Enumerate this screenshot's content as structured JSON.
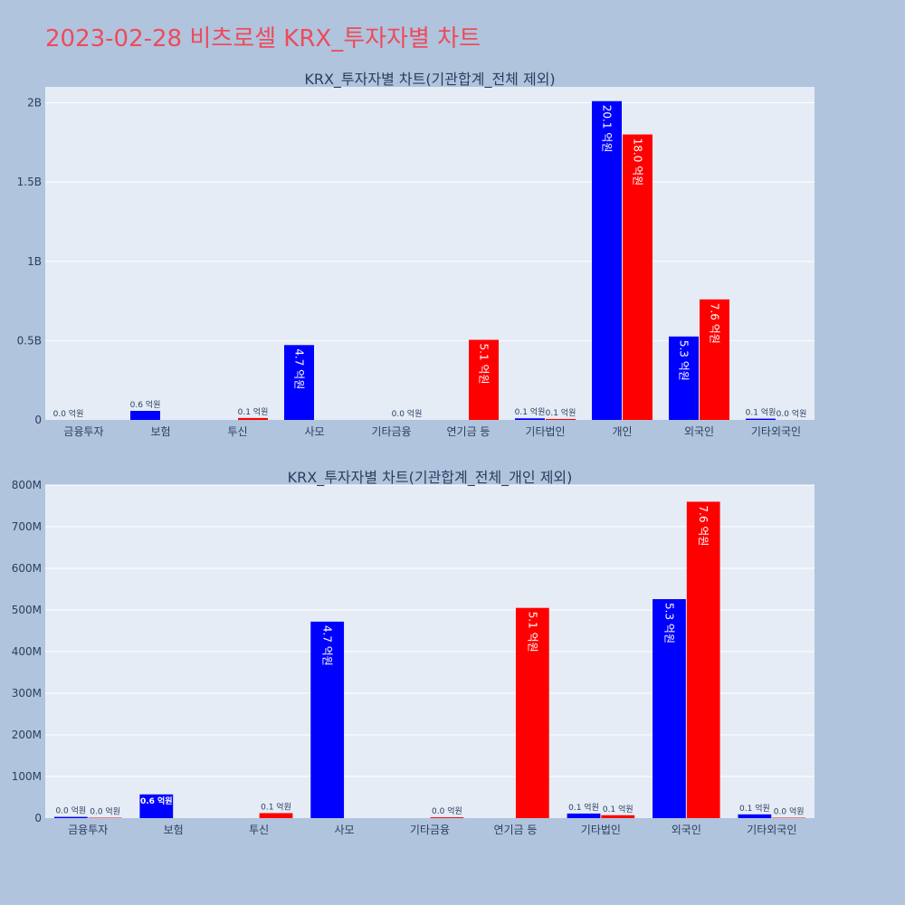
{
  "page": {
    "title": "2023-02-28 비츠로셀 KRX_투자자별 차트"
  },
  "colors": {
    "buy": "#0000ff",
    "sell": "#ff0000",
    "plot_bg": "#e5ecf6",
    "page_bg": "#b0c4de",
    "title": "#ee4b5b"
  },
  "chart_data": [
    {
      "type": "bar",
      "title": "KRX_투자자별 차트(기관합계_전체 제외)",
      "categories": [
        "금융투자",
        "보험",
        "투신",
        "사모",
        "기타금융",
        "연기금 등",
        "기타법인",
        "개인",
        "외국인",
        "기타외국인"
      ],
      "ylim": [
        0,
        2100000000
      ],
      "yticks": [
        0,
        500000000,
        1000000000,
        1500000000,
        2000000000
      ],
      "ytick_labels": [
        "0",
        "0.5B",
        "1B",
        "1.5B",
        "2B"
      ],
      "grid": true,
      "series": [
        {
          "color": "#0000ff",
          "values": [
            0,
            57000000,
            null,
            472000000,
            null,
            null,
            10000000,
            2010000000,
            526000000,
            8000000
          ],
          "labels": [
            "0.0 억원",
            "0.6 억원",
            "",
            "4.7 억원",
            "",
            "",
            "0.1 억원",
            "20.1 억원",
            "5.3 억원",
            "0.1 억원"
          ]
        },
        {
          "color": "#ff0000",
          "values": [
            null,
            null,
            12000000,
            null,
            0,
            505000000,
            6000000,
            1800000000,
            760000000,
            0
          ],
          "labels": [
            "",
            "",
            "0.1 억원",
            "",
            "0.0 억원",
            "5.1 억원",
            "0.1 억원",
            "18.0 억원",
            "7.6 억원",
            "0.0 억원"
          ]
        }
      ]
    },
    {
      "type": "bar",
      "title": "KRX_투자자별 차트(기관합계_전체_개인 제외)",
      "categories": [
        "금융투자",
        "보험",
        "투신",
        "사모",
        "기타금융",
        "연기금 등",
        "기타법인",
        "외국인",
        "기타외국인"
      ],
      "ylim": [
        0,
        800000000
      ],
      "yticks": [
        0,
        100000000,
        200000000,
        300000000,
        400000000,
        500000000,
        600000000,
        700000000,
        800000000
      ],
      "ytick_labels": [
        "0",
        "100M",
        "200M",
        "300M",
        "400M",
        "500M",
        "600M",
        "700M",
        "800M"
      ],
      "grid": true,
      "series": [
        {
          "color": "#0000ff",
          "values": [
            3000000,
            57000000,
            null,
            472000000,
            null,
            null,
            11000000,
            526000000,
            9000000
          ],
          "labels": [
            "0.0 억원",
            "0.6 억원",
            "",
            "4.7 억원",
            "",
            "",
            "0.1 억원",
            "5.3 억원",
            "0.1 억원"
          ]
        },
        {
          "color": "#ff0000",
          "values": [
            1000000,
            null,
            12000000,
            null,
            2000000,
            505000000,
            7000000,
            760000000,
            1000000
          ],
          "labels": [
            "0.0 억원",
            "",
            "0.1 억원",
            "",
            "0.0 억원",
            "5.1 억원",
            "0.1 억원",
            "7.6 억원",
            "0.0 억원"
          ]
        }
      ]
    }
  ]
}
